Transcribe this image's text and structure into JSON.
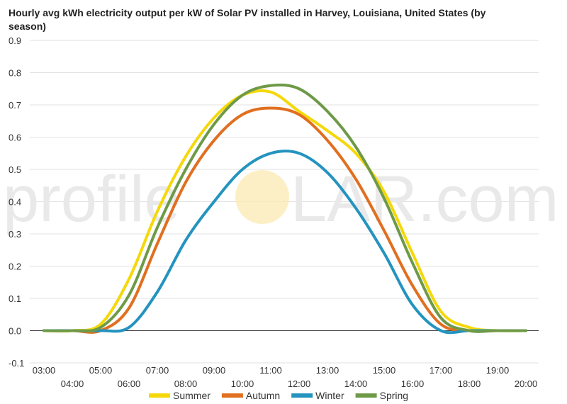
{
  "chart_data": {
    "type": "line",
    "title": "Hourly avg kWh electricity output per kW of Solar PV installed in Harvey, Louisiana, United States (by season)",
    "xlabel": "",
    "ylabel": "",
    "x": [
      "03:00",
      "04:00",
      "05:00",
      "06:00",
      "07:00",
      "08:00",
      "09:00",
      "10:00",
      "11:00",
      "12:00",
      "13:00",
      "14:00",
      "15:00",
      "16:00",
      "17:00",
      "18:00",
      "19:00",
      "20:00"
    ],
    "ylim": [
      -0.1,
      0.9
    ],
    "yticks": [
      "-0.1",
      "0.0",
      "0.1",
      "0.2",
      "0.3",
      "0.4",
      "0.5",
      "0.6",
      "0.7",
      "0.8",
      "0.9"
    ],
    "grid": true,
    "legend": "bottom",
    "series": [
      {
        "name": "Summer",
        "color": "#f5d80a",
        "values": [
          0.0,
          0.0,
          0.02,
          0.16,
          0.37,
          0.54,
          0.66,
          0.73,
          0.74,
          0.68,
          0.62,
          0.55,
          0.43,
          0.24,
          0.06,
          0.01,
          0.0,
          0.0
        ]
      },
      {
        "name": "Autumn",
        "color": "#e16f20",
        "values": [
          0.0,
          0.0,
          0.0,
          0.07,
          0.27,
          0.46,
          0.59,
          0.67,
          0.69,
          0.67,
          0.59,
          0.47,
          0.31,
          0.14,
          0.02,
          0.0,
          0.0,
          0.0
        ]
      },
      {
        "name": "Winter",
        "color": "#2493bf",
        "values": [
          0.0,
          0.0,
          0.0,
          0.01,
          0.12,
          0.28,
          0.4,
          0.5,
          0.55,
          0.55,
          0.49,
          0.38,
          0.24,
          0.08,
          0.0,
          0.0,
          0.0,
          0.0
        ]
      },
      {
        "name": "Spring",
        "color": "#6e9a48",
        "values": [
          0.0,
          0.0,
          0.01,
          0.11,
          0.32,
          0.5,
          0.64,
          0.73,
          0.76,
          0.75,
          0.68,
          0.57,
          0.41,
          0.21,
          0.04,
          0.0,
          0.0,
          0.0
        ]
      }
    ],
    "watermark": {
      "left": "profile",
      "right": "LAR.com"
    }
  }
}
